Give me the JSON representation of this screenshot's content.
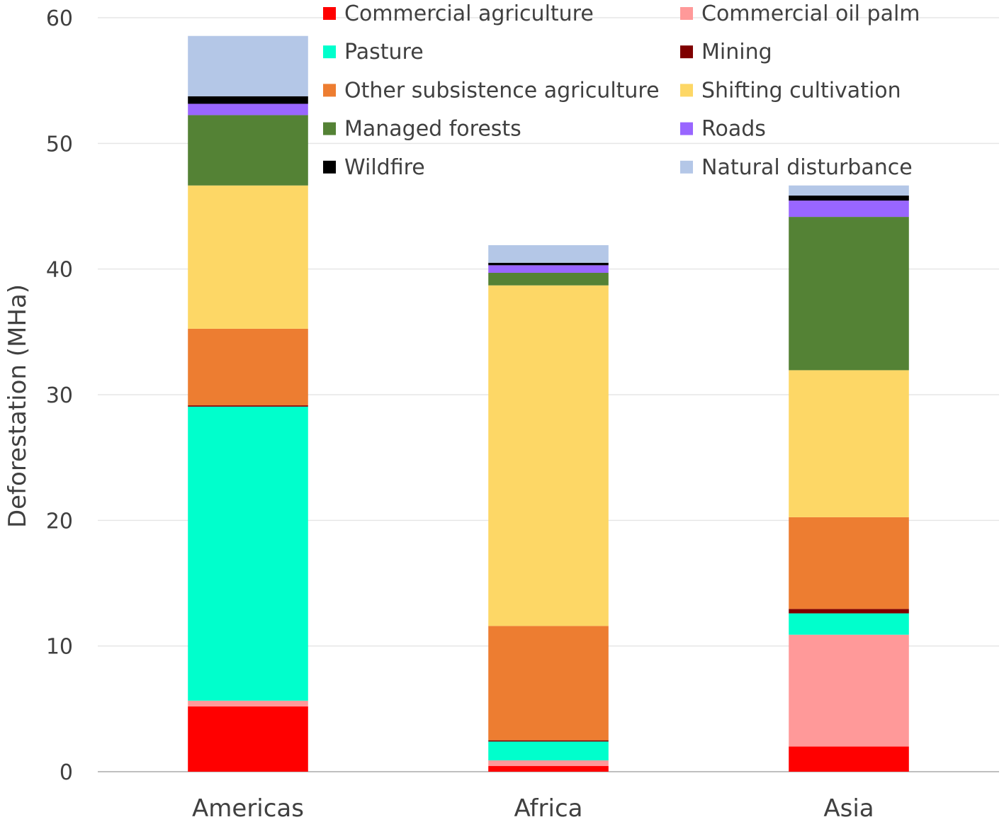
{
  "chart_data": {
    "type": "bar",
    "stacked": true,
    "title": "",
    "xlabel": "",
    "ylabel": "Deforestation (MHa)",
    "ylim": [
      0,
      60
    ],
    "yticks": [
      0,
      10,
      20,
      30,
      40,
      50,
      60
    ],
    "grid": true,
    "legend_position": "top-right",
    "categories": [
      "Americas",
      "Africa",
      "Asia"
    ],
    "series": [
      {
        "name": "Commercial agriculture",
        "color": "#FF0000",
        "values": [
          5.2,
          0.45,
          2.0
        ]
      },
      {
        "name": "Commercial oil palm",
        "color": "#FF9999",
        "values": [
          0.45,
          0.45,
          8.9
        ]
      },
      {
        "name": "Pasture",
        "color": "#00FFCC",
        "values": [
          23.4,
          1.5,
          1.7
        ]
      },
      {
        "name": "Mining",
        "color": "#7F0000",
        "values": [
          0.1,
          0.1,
          0.35
        ]
      },
      {
        "name": "Other subsistence agriculture",
        "color": "#ED7D31",
        "values": [
          6.1,
          9.1,
          7.3
        ]
      },
      {
        "name": "Shifting cultivation",
        "color": "#FDD766",
        "values": [
          11.4,
          27.1,
          11.7
        ]
      },
      {
        "name": "Managed forests",
        "color": "#548235",
        "values": [
          5.6,
          1.0,
          12.2
        ]
      },
      {
        "name": "Roads",
        "color": "#9966FF",
        "values": [
          0.9,
          0.6,
          1.3
        ]
      },
      {
        "name": "Wildfire",
        "color": "#000000",
        "values": [
          0.6,
          0.2,
          0.4
        ]
      },
      {
        "name": "Natural disturbance",
        "color": "#B4C7E7",
        "values": [
          4.8,
          1.4,
          0.8
        ]
      }
    ]
  }
}
